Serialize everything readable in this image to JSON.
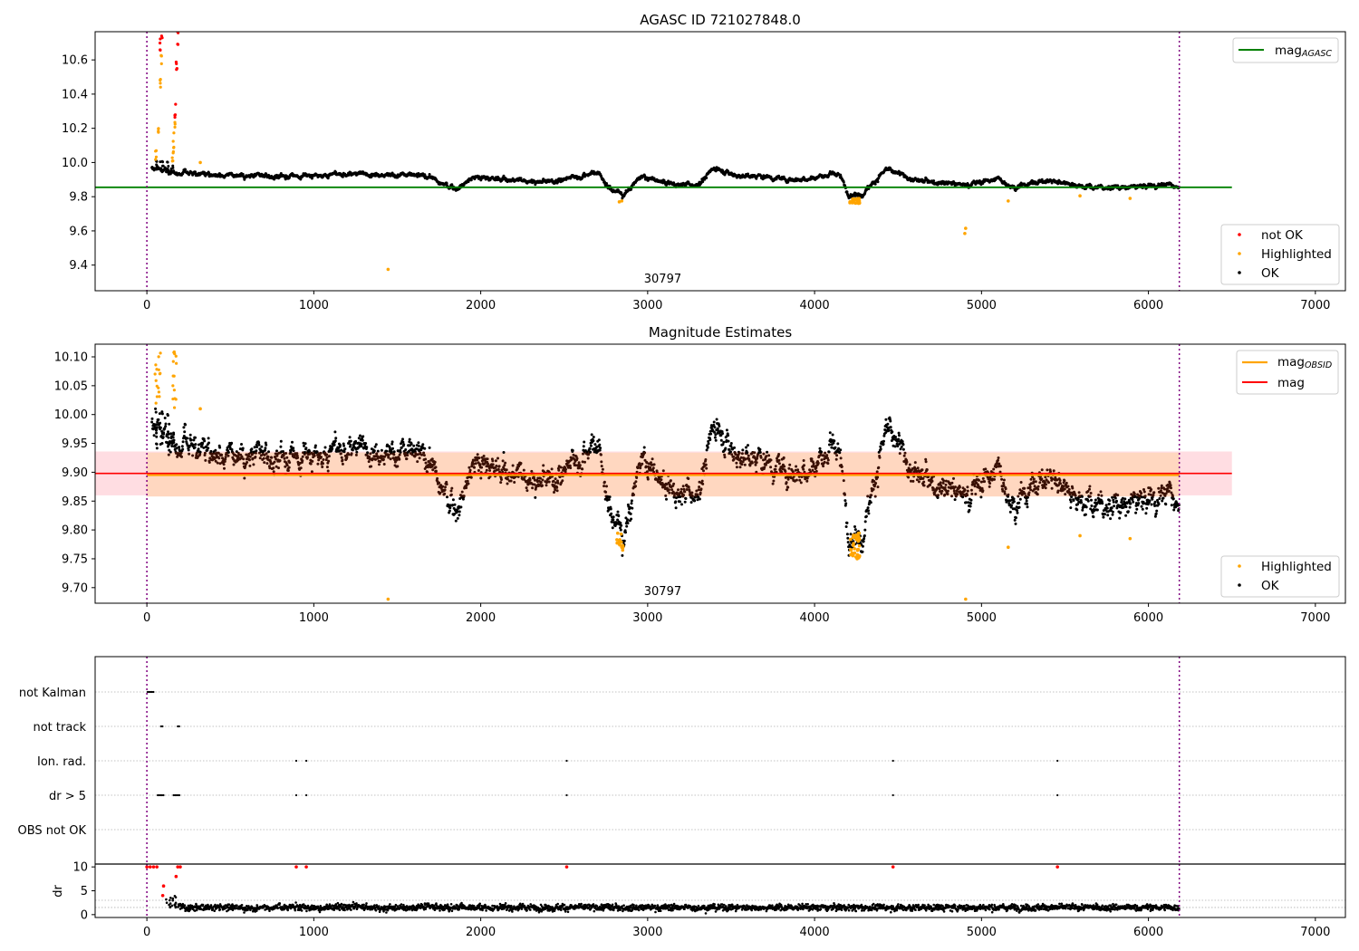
{
  "colors": {
    "ok": "#000000",
    "highlighted": "#ffa500",
    "not_ok": "#ff0000",
    "mag_agasc": "#008000",
    "mag_obsid": "#ffa500",
    "mag": "#ff0000",
    "boundary": "#800080",
    "band_outer": "#ffdde2",
    "band_inner": "#ffd7c0",
    "brown_points": "#3a1005"
  },
  "chart_data": [
    {
      "type": "scatter",
      "title": "AGASC ID 721027848.0",
      "xlim": [
        -310,
        7180
      ],
      "ylim": [
        9.25,
        10.765
      ],
      "x_ticks": [
        0,
        1000,
        2000,
        3000,
        4000,
        5000,
        6000,
        7000
      ],
      "y_ticks": [
        9.4,
        9.6,
        9.8,
        10.0,
        10.2,
        10.4,
        10.6
      ],
      "y_tick_labels": [
        "9.4",
        "9.6",
        "9.8",
        "10.0",
        "10.2",
        "10.4",
        "10.6"
      ],
      "annotation": "30797",
      "annotation_x": 3090,
      "vertical_lines": [
        0,
        6185
      ],
      "reference_lines": [
        {
          "name": "mag_AGASC",
          "value": 9.855,
          "x_range": [
            -310,
            6500
          ]
        }
      ],
      "legend_upper": [
        {
          "label": "mag",
          "sub": "AGASC"
        }
      ],
      "legend_lower": [
        "not OK",
        "Highlighted",
        "OK"
      ],
      "baseline_segments": [
        [
          0,
          9.975
        ],
        [
          200,
          9.94
        ],
        [
          500,
          9.93
        ],
        [
          800,
          9.915
        ],
        [
          1000,
          9.925
        ],
        [
          1400,
          9.935
        ],
        [
          1500,
          9.925
        ],
        [
          1700,
          9.92
        ],
        [
          1750,
          9.88
        ],
        [
          1850,
          9.845
        ],
        [
          1950,
          9.915
        ],
        [
          2150,
          9.9
        ],
        [
          2400,
          9.885
        ],
        [
          2600,
          9.92
        ],
        [
          2700,
          9.95
        ],
        [
          2760,
          9.86
        ],
        [
          2850,
          9.81
        ],
        [
          2950,
          9.915
        ],
        [
          3150,
          9.875
        ],
        [
          3300,
          9.87
        ],
        [
          3400,
          9.97
        ],
        [
          3550,
          9.92
        ],
        [
          3700,
          9.92
        ],
        [
          3850,
          9.9
        ],
        [
          4150,
          9.93
        ],
        [
          4200,
          9.81
        ],
        [
          4290,
          9.82
        ],
        [
          4430,
          9.96
        ],
        [
          4600,
          9.895
        ],
        [
          4800,
          9.885
        ],
        [
          4900,
          9.87
        ],
        [
          5100,
          9.905
        ],
        [
          5200,
          9.855
        ],
        [
          5350,
          9.89
        ],
        [
          5500,
          9.885
        ],
        [
          5650,
          9.855
        ],
        [
          5900,
          9.855
        ],
        [
          6100,
          9.87
        ],
        [
          6185,
          9.86
        ]
      ],
      "highlighted_points": [
        [
          1445,
          9.375
        ],
        [
          4900,
          9.585
        ],
        [
          4905,
          9.615
        ],
        [
          5160,
          9.775
        ],
        [
          5590,
          9.805
        ],
        [
          5890,
          9.79
        ],
        [
          2830,
          9.77
        ],
        [
          2845,
          9.775
        ],
        [
          4240,
          9.765
        ],
        [
          4260,
          9.77
        ],
        [
          4230,
          9.775
        ],
        [
          320,
          10.0
        ]
      ],
      "early_spike_orange": [
        [
          55,
          10.05
        ],
        [
          70,
          10.2
        ],
        [
          80,
          10.45
        ],
        [
          85,
          10.6
        ],
        [
          155,
          10.03
        ],
        [
          160,
          10.1
        ],
        [
          165,
          10.2
        ]
      ],
      "early_spike_red": [
        [
          80,
          10.7
        ],
        [
          90,
          10.76
        ],
        [
          170,
          10.3
        ],
        [
          178,
          10.55
        ],
        [
          185,
          10.74
        ]
      ]
    },
    {
      "type": "scatter",
      "title": "Magnitude Estimates",
      "xlim": [
        -310,
        7180
      ],
      "ylim": [
        9.673,
        10.122
      ],
      "x_ticks": [
        0,
        1000,
        2000,
        3000,
        4000,
        5000,
        6000,
        7000
      ],
      "y_ticks": [
        9.7,
        9.75,
        9.8,
        9.85,
        9.9,
        9.95,
        10.0,
        10.05,
        10.1
      ],
      "y_tick_labels": [
        "9.70",
        "9.75",
        "9.80",
        "9.85",
        "9.90",
        "9.95",
        "10.00",
        "10.05",
        "10.10"
      ],
      "annotation": "30797",
      "annotation_x": 3090,
      "vertical_lines": [
        0,
        6185
      ],
      "reference_lines": [
        {
          "name": "mag",
          "value": 9.898,
          "x_range": [
            -310,
            6500
          ]
        },
        {
          "name": "mag_OBSID",
          "value": 9.895,
          "x_range": [
            0,
            6185
          ]
        }
      ],
      "bands": [
        {
          "name": "mag band",
          "range": [
            9.86,
            9.936
          ],
          "x_range": [
            -310,
            6500
          ]
        },
        {
          "name": "mag_OBSID band",
          "range": [
            9.858,
            9.934
          ],
          "x_range": [
            0,
            6185
          ]
        }
      ],
      "legend_upper": [
        {
          "label": "mag",
          "sub": "OBSID"
        },
        {
          "label": "mag",
          "sub": ""
        }
      ],
      "legend_lower": [
        "Highlighted",
        "OK"
      ],
      "highlighted_points": [
        [
          1445,
          9.68
        ],
        [
          4905,
          9.68
        ],
        [
          5160,
          9.77
        ],
        [
          5590,
          9.79
        ],
        [
          5890,
          9.785
        ],
        [
          2830,
          9.78
        ],
        [
          2845,
          9.77
        ],
        [
          4240,
          9.76
        ],
        [
          4255,
          9.75
        ],
        [
          320,
          10.01
        ]
      ]
    },
    {
      "type": "scatter",
      "title": "",
      "xlim": [
        -310,
        7180
      ],
      "categories": [
        "not Kalman",
        "not track",
        "Ion. rad.",
        "dr > 5",
        "OBS not OK"
      ],
      "vertical_lines": [
        0,
        6185
      ],
      "flag_points": {
        "not Kalman": [
          [
            5,
            45
          ]
        ],
        "not track": [
          [
            85,
            95
          ],
          [
            185,
            200
          ]
        ],
        "Ion. rad.": [
          [
            895,
            895
          ],
          [
            955,
            955
          ],
          [
            2515,
            2515
          ],
          [
            4470,
            4470
          ],
          [
            5455,
            5455
          ]
        ],
        "dr > 5": [
          [
            65,
            100
          ],
          [
            160,
            200
          ],
          [
            895,
            895
          ],
          [
            955,
            955
          ],
          [
            2515,
            2515
          ],
          [
            4470,
            4470
          ],
          [
            5455,
            5455
          ]
        ],
        "OBS not OK": []
      }
    },
    {
      "type": "scatter",
      "title": "",
      "xlim": [
        -310,
        7180
      ],
      "ylim": [
        -0.6,
        10.6
      ],
      "ylabel": "dr",
      "x_ticks": [
        0,
        1000,
        2000,
        3000,
        4000,
        5000,
        6000,
        7000
      ],
      "y_ticks": [
        0,
        5,
        10
      ],
      "y_tick_labels": [
        "0",
        "5",
        "10"
      ],
      "vertical_lines": [
        0,
        6185
      ],
      "not_ok_points": [
        [
          0,
          10
        ],
        [
          20,
          10
        ],
        [
          40,
          10
        ],
        [
          60,
          10
        ],
        [
          895,
          10
        ],
        [
          955,
          10
        ],
        [
          2515,
          10
        ],
        [
          4470,
          10
        ],
        [
          5455,
          10
        ],
        [
          100,
          6
        ],
        [
          95,
          4
        ],
        [
          175,
          8
        ],
        [
          185,
          10
        ],
        [
          200,
          10
        ]
      ]
    }
  ]
}
